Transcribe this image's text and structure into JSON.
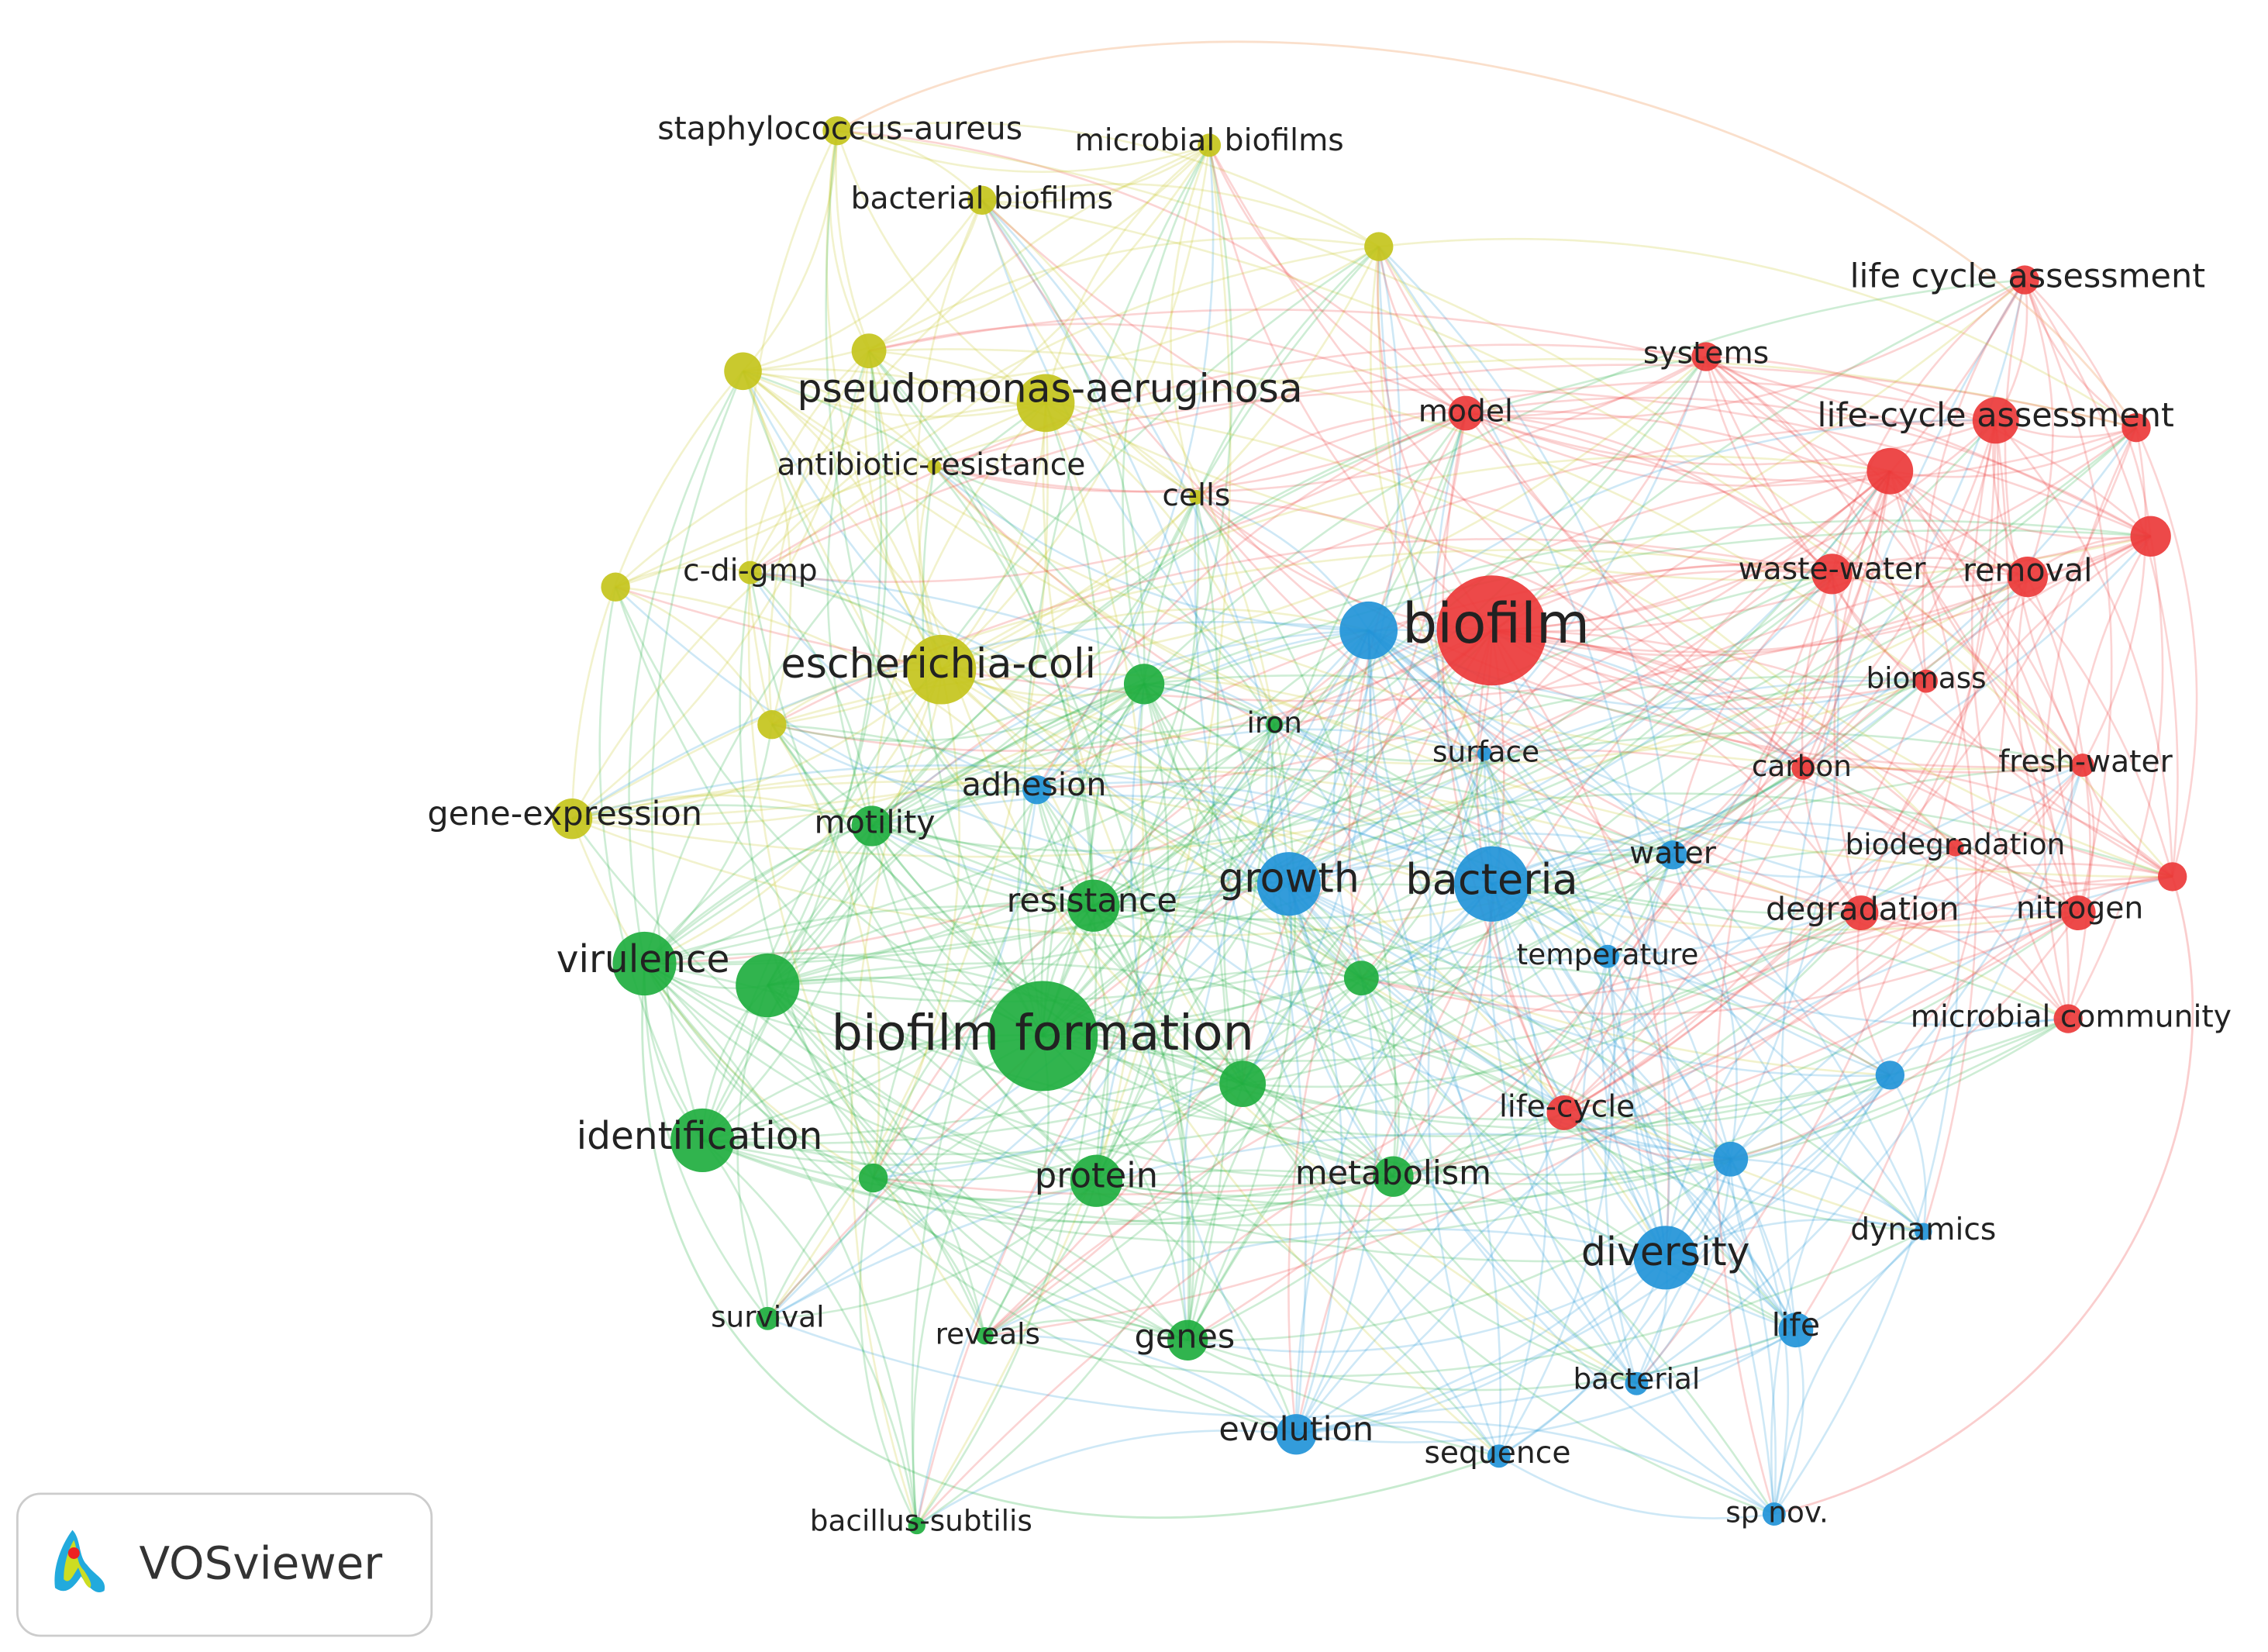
{
  "nodes": [
    {
      "label": "staphylococcus-aureus"
    },
    {
      "label": "microbial biofilms"
    },
    {
      "label": "bacterial biofilms"
    },
    {
      "label": "pseudomonas-aeruginosa"
    },
    {
      "label": "antibiotic-resistance"
    },
    {
      "label": "cells"
    },
    {
      "label": "c-di-gmp"
    },
    {
      "label": "escherichia-coli"
    },
    {
      "label": "gene-expression"
    },
    {
      "label": "iron"
    },
    {
      "label": "motility"
    },
    {
      "label": "resistance"
    },
    {
      "label": "virulence"
    },
    {
      "label": "biofilm formation"
    },
    {
      "label": "identification"
    },
    {
      "label": "protein"
    },
    {
      "label": "metabolism"
    },
    {
      "label": "survival"
    },
    {
      "label": "reveals"
    },
    {
      "label": "genes"
    },
    {
      "label": "bacillus-subtilis"
    },
    {
      "label": "adhesion"
    },
    {
      "label": "surface"
    },
    {
      "label": "growth"
    },
    {
      "label": "bacteria"
    },
    {
      "label": "water"
    },
    {
      "label": "temperature"
    },
    {
      "label": "diversity"
    },
    {
      "label": "dynamics"
    },
    {
      "label": "life"
    },
    {
      "label": "bacterial"
    },
    {
      "label": "evolution"
    },
    {
      "label": "sequence"
    },
    {
      "label": "sp nov."
    },
    {
      "label": "biofilm"
    },
    {
      "label": "life cycle assessment"
    },
    {
      "label": "systems"
    },
    {
      "label": "model"
    },
    {
      "label": "life-cycle assessment"
    },
    {
      "label": "waste-water"
    },
    {
      "label": "removal"
    },
    {
      "label": "biomass"
    },
    {
      "label": "carbon"
    },
    {
      "label": "fresh-water"
    },
    {
      "label": "biodegradation"
    },
    {
      "label": "degradation"
    },
    {
      "label": "nitrogen"
    },
    {
      "label": "microbial community"
    },
    {
      "label": "life-cycle"
    }
  ],
  "logo": {
    "text": "VOSviewer"
  }
}
